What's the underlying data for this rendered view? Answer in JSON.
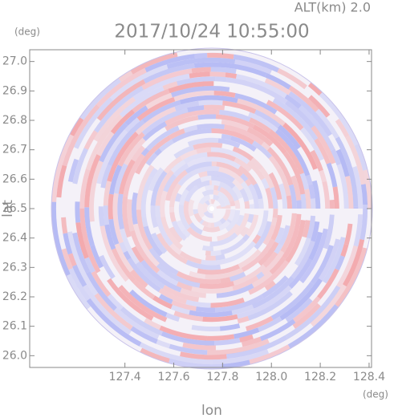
{
  "chart_data": {
    "type": "radar-ppi",
    "title": "2017/10/24 10:55:00",
    "subtitle": "ALT(km) 2.0",
    "x_label": "lon",
    "y_label": "lat",
    "x_unit": "(deg)",
    "y_unit": "(deg)",
    "xlim": [
      127.01,
      128.41
    ],
    "ylim": [
      25.96,
      27.04
    ],
    "xticks": [
      127.4,
      127.6,
      127.8,
      {
        "value": 128,
        "label": "128.0"
      },
      128.2,
      128.4
    ],
    "yticks": [
      {
        "value": 26,
        "label": "26.0"
      },
      26.1,
      26.2,
      26.3,
      26.4,
      26.5,
      26.6,
      26.7,
      26.8,
      26.9,
      {
        "value": 27,
        "label": "27.0"
      }
    ],
    "colors": [
      "#f3a9ad",
      "#b3b8f4"
    ]
  }
}
